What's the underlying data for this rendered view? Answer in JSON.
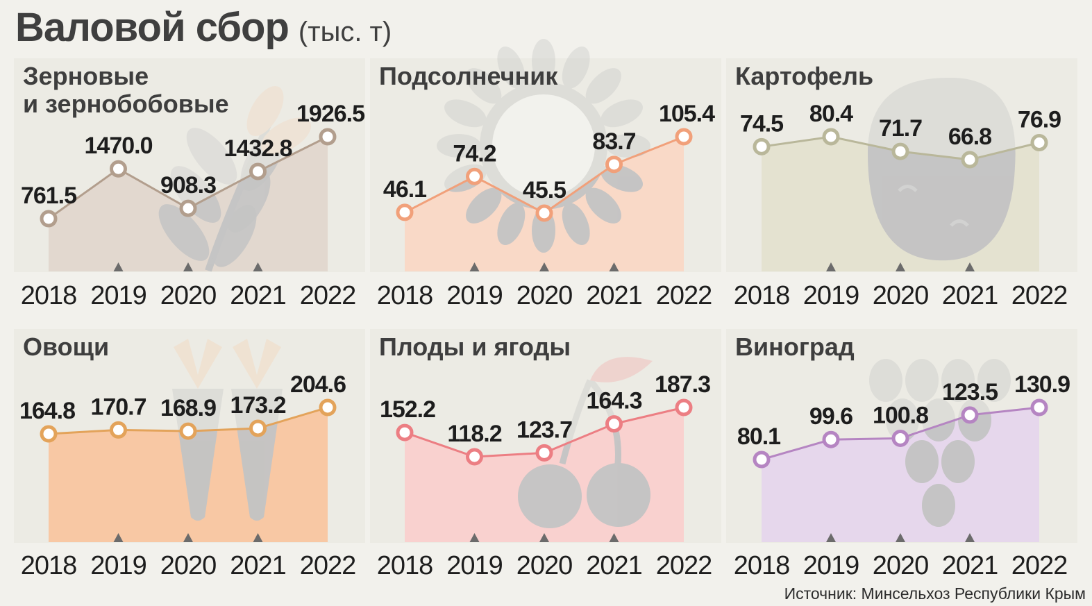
{
  "header": {
    "title": "Валовой сбор",
    "unit": "(тыс. т)"
  },
  "source": "Источник: Минсельхоз Республики Крым",
  "colors": {
    "page_bg": "#f2f1ec",
    "panel_bg": "#ecebe4",
    "grain": "#b29e8d",
    "sunflower": "#f1a07a",
    "potato": "#b9b79a",
    "vegetables": "#e3a35a",
    "fruits": "#ec7e83",
    "grapes": "#b585c2",
    "motif": "#c4c4c4"
  },
  "chart_data": [
    {
      "type": "area",
      "title": "Зерновые\nи зернобобовые",
      "x": [
        "2018",
        "2019",
        "2020",
        "2021",
        "2022"
      ],
      "series": [
        {
          "values": [
            761.5,
            1470.0,
            908.3,
            1432.8,
            1926.5
          ]
        }
      ],
      "value_labels": [
        "761.5",
        "1470.0",
        "908.3",
        "1432.8",
        "1926.5"
      ],
      "icon": "wheat-icon",
      "color": "#b29e8d",
      "fill": "#e2d8cf"
    },
    {
      "type": "area",
      "title": "Подсолнечник",
      "x": [
        "2018",
        "2019",
        "2020",
        "2021",
        "2022"
      ],
      "series": [
        {
          "values": [
            46.1,
            74.2,
            45.5,
            83.7,
            105.4
          ]
        }
      ],
      "value_labels": [
        "46.1",
        "74.2",
        "45.5",
        "83.7",
        "105.4"
      ],
      "icon": "sunflower-icon",
      "color": "#f1a07a",
      "fill": "#f9d9c7"
    },
    {
      "type": "area",
      "title": "Картофель",
      "x": [
        "2018",
        "2019",
        "2020",
        "2021",
        "2022"
      ],
      "series": [
        {
          "values": [
            74.5,
            80.4,
            71.7,
            66.8,
            76.9
          ]
        }
      ],
      "value_labels": [
        "74.5",
        "80.4",
        "71.7",
        "66.8",
        "76.9"
      ],
      "icon": "potato-icon",
      "color": "#b9b79a",
      "fill": "#e4e2d0"
    },
    {
      "type": "area",
      "title": "Овощи",
      "x": [
        "2018",
        "2019",
        "2020",
        "2021",
        "2022"
      ],
      "series": [
        {
          "values": [
            164.8,
            170.7,
            168.9,
            173.2,
            204.6
          ]
        }
      ],
      "value_labels": [
        "164.8",
        "170.7",
        "168.9",
        "173.2",
        "204.6"
      ],
      "icon": "carrot-icon",
      "color": "#e3a35a",
      "fill": "#f8c8a4"
    },
    {
      "type": "area",
      "title": "Плоды и ягоды",
      "x": [
        "2018",
        "2019",
        "2020",
        "2021",
        "2022"
      ],
      "series": [
        {
          "values": [
            152.2,
            118.2,
            123.7,
            164.3,
            187.3
          ]
        }
      ],
      "value_labels": [
        "152.2",
        "118.2",
        "123.7",
        "164.3",
        "187.3"
      ],
      "icon": "cherry-icon",
      "color": "#ec7e83",
      "fill": "#f9d1cf"
    },
    {
      "type": "area",
      "title": "Виноград",
      "x": [
        "2018",
        "2019",
        "2020",
        "2021",
        "2022"
      ],
      "series": [
        {
          "values": [
            80.1,
            99.6,
            100.8,
            123.5,
            130.9
          ]
        }
      ],
      "value_labels": [
        "80.1",
        "99.6",
        "100.8",
        "123.5",
        "130.9"
      ],
      "icon": "grapes-icon",
      "color": "#b585c2",
      "fill": "#e6d7ec"
    }
  ]
}
